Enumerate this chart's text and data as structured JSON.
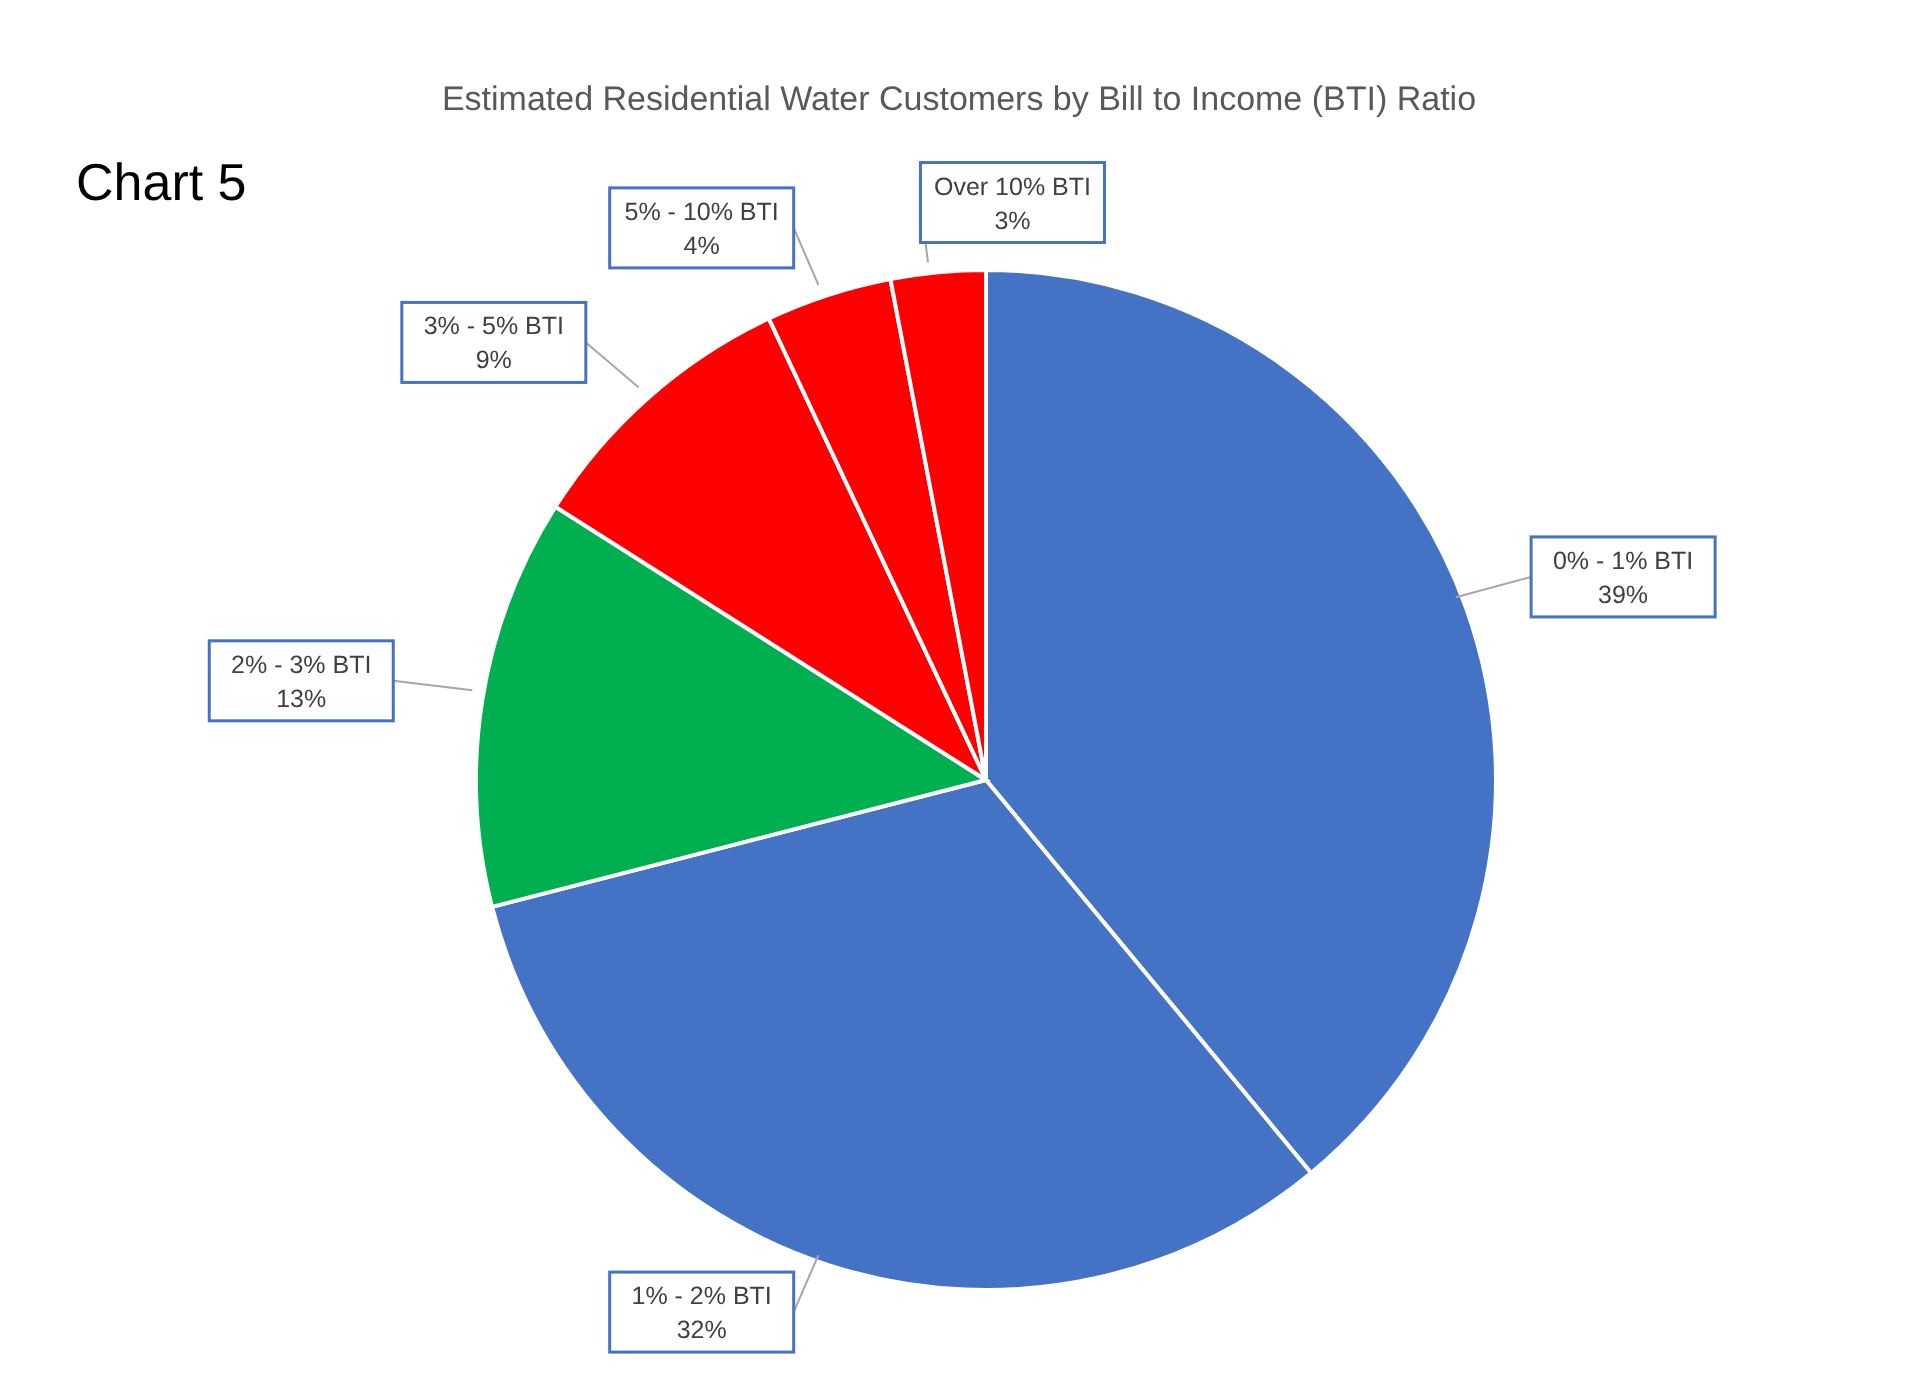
{
  "chart_data": {
    "type": "pie",
    "title": "Estimated Residential Water Customers by Bill to Income (BTI) Ratio",
    "annotations": [
      "Chart 5"
    ],
    "categories": [
      "0% - 1% BTI",
      "1% - 2% BTI",
      "2% - 3% BTI",
      "3% - 5% BTI",
      "5% - 10% BTI",
      "Over 10% BTI"
    ],
    "values": [
      39,
      32,
      13,
      9,
      4,
      3
    ],
    "value_labels": [
      "39%",
      "32%",
      "13%",
      "9%",
      "4%",
      "3%"
    ],
    "colors": [
      "#4472c4",
      "#4472c4",
      "#00b050",
      "#ff0000",
      "#ff0000",
      "#ff0000"
    ],
    "legend": false
  }
}
